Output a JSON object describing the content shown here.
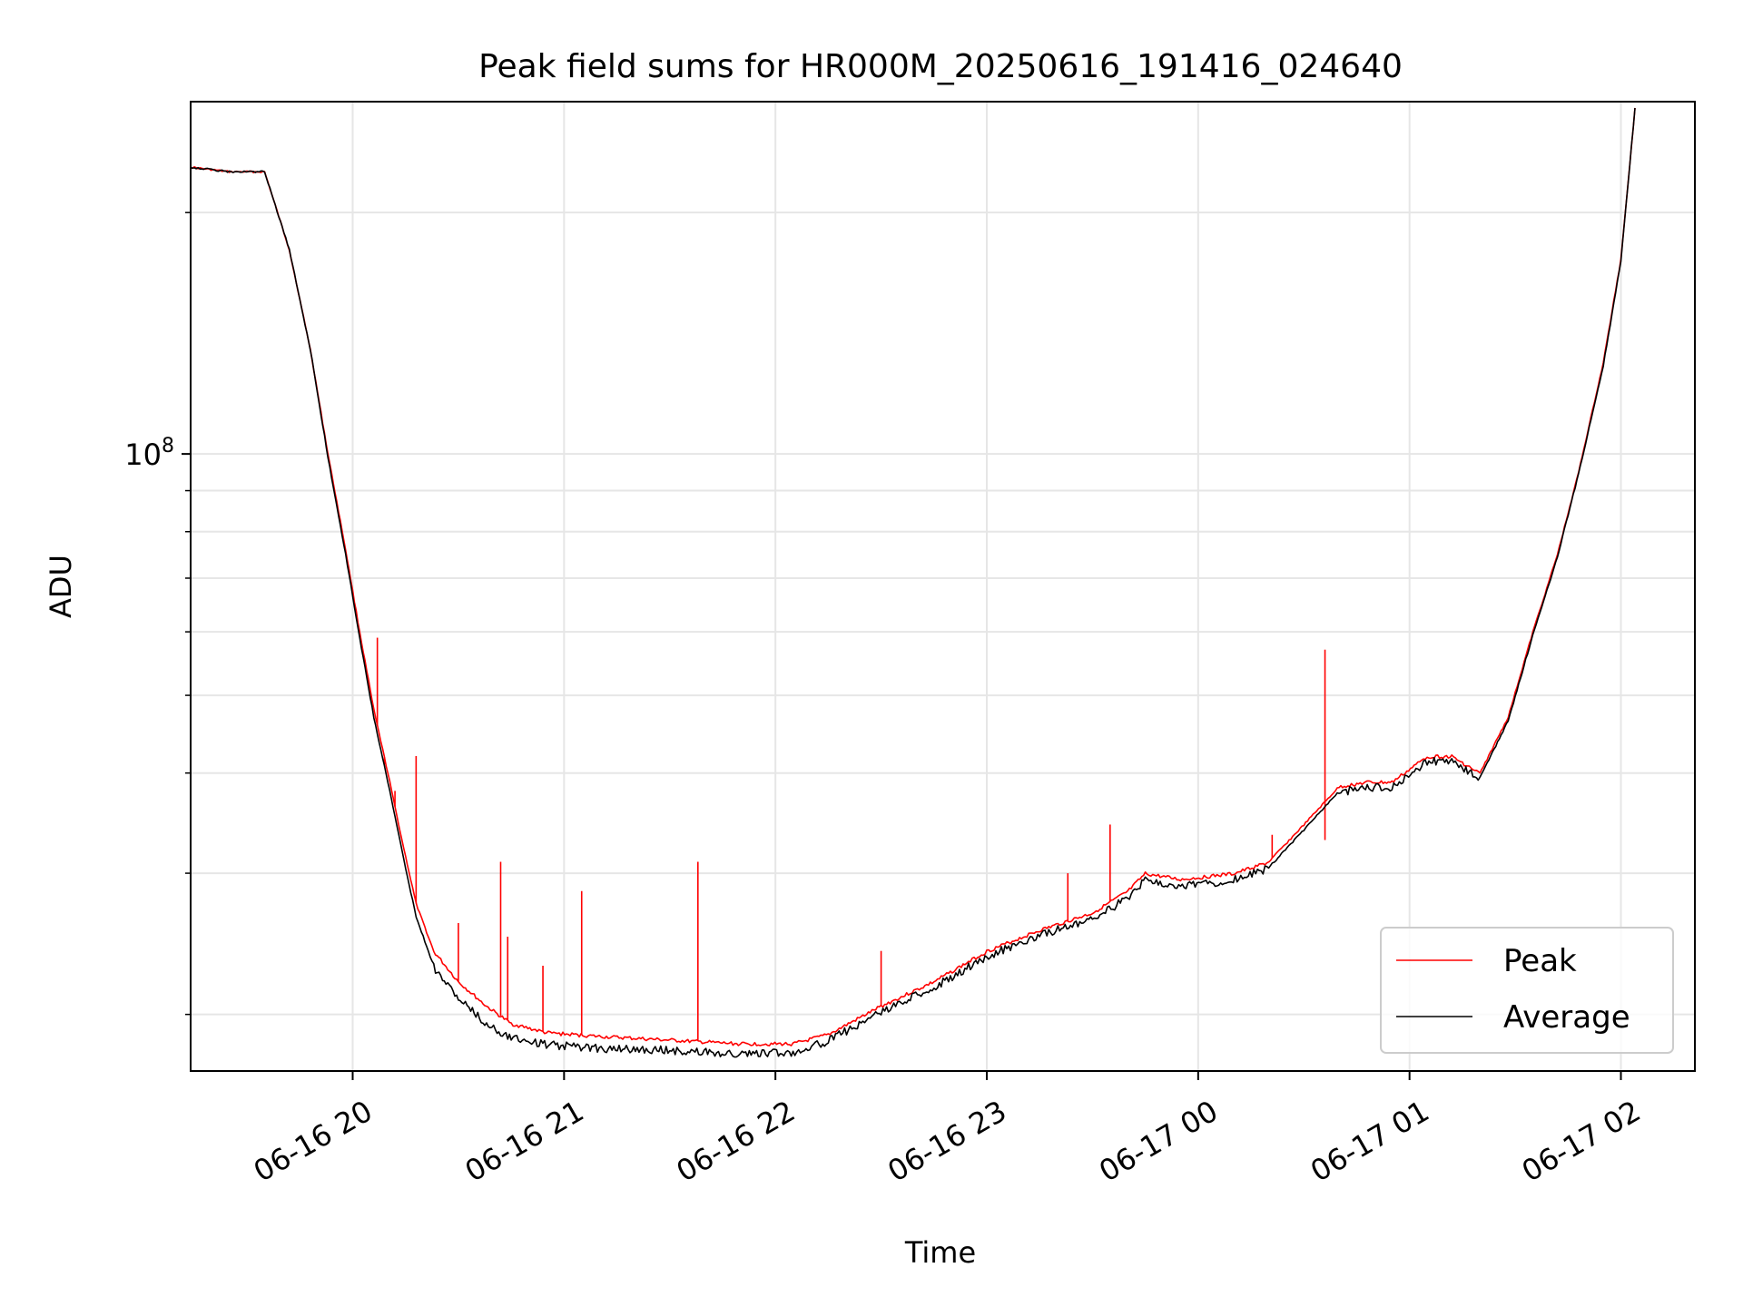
{
  "chart_data": {
    "type": "line",
    "title": "Peak field sums for HR000M_20250616_191416_024640",
    "xlabel": "Time",
    "ylabel": "ADU",
    "y_scale": "log",
    "ylim": [
      17000000,
      275000000
    ],
    "xlim": [
      "2025-06-16 19:14",
      "2025-06-17 02:21"
    ],
    "x_ticks": [
      {
        "t": "2025-06-16 20:00",
        "label": "06-16 20"
      },
      {
        "t": "2025-06-16 21:00",
        "label": "06-16 21"
      },
      {
        "t": "2025-06-16 22:00",
        "label": "06-16 22"
      },
      {
        "t": "2025-06-16 23:00",
        "label": "06-16 23"
      },
      {
        "t": "2025-06-17 00:00",
        "label": "06-17 00"
      },
      {
        "t": "2025-06-17 01:00",
        "label": "06-17 01"
      },
      {
        "t": "2025-06-17 02:00",
        "label": "06-17 02"
      }
    ],
    "y_major_ticks": [
      {
        "value": 100000000,
        "base": "10",
        "exp": "8"
      }
    ],
    "y_minor_ticks": [
      20000000,
      30000000,
      40000000,
      50000000,
      60000000,
      70000000,
      80000000,
      90000000,
      200000000
    ],
    "grid": true,
    "legend_position": "lower right",
    "series": [
      {
        "name": "Peak",
        "color": "#ff0000",
        "x": [
          "2025-06-16 19:14",
          "2025-06-16 19:25",
          "2025-06-16 19:35",
          "2025-06-16 19:42",
          "2025-06-16 19:48",
          "2025-06-16 19:53",
          "2025-06-16 19:58",
          "2025-06-16 20:02",
          "2025-06-16 20:06",
          "2025-06-16 20:10",
          "2025-06-16 20:14",
          "2025-06-16 20:18",
          "2025-06-16 20:23",
          "2025-06-16 20:30",
          "2025-06-16 20:38",
          "2025-06-16 20:45",
          "2025-06-16 20:55",
          "2025-06-16 21:10",
          "2025-06-16 21:30",
          "2025-06-16 21:50",
          "2025-06-16 22:05",
          "2025-06-16 22:15",
          "2025-06-16 22:30",
          "2025-06-16 22:45",
          "2025-06-16 23:00",
          "2025-06-16 23:15",
          "2025-06-16 23:30",
          "2025-06-16 23:40",
          "2025-06-16 23:45",
          "2025-06-16 23:55",
          "2025-06-17 00:10",
          "2025-06-17 00:20",
          "2025-06-17 00:30",
          "2025-06-17 00:40",
          "2025-06-17 00:48",
          "2025-06-17 00:55",
          "2025-06-17 01:05",
          "2025-06-17 01:12",
          "2025-06-17 01:20",
          "2025-06-17 01:28",
          "2025-06-17 01:35",
          "2025-06-17 01:42",
          "2025-06-17 01:48",
          "2025-06-17 01:55",
          "2025-06-17 02:00",
          "2025-06-17 02:04"
        ],
        "y": [
          228000000,
          225000000,
          225000000,
          180000000,
          135000000,
          100000000,
          76000000,
          60000000,
          48000000,
          40000000,
          33000000,
          27500000,
          24000000,
          22000000,
          20500000,
          19500000,
          19000000,
          18800000,
          18600000,
          18400000,
          18400000,
          18900000,
          20500000,
          22000000,
          24000000,
          25500000,
          26800000,
          28500000,
          30000000,
          29500000,
          30000000,
          31000000,
          34500000,
          38500000,
          39000000,
          39000000,
          42000000,
          42000000,
          40000000,
          47000000,
          60000000,
          75000000,
          95000000,
          130000000,
          175000000,
          270000000
        ],
        "spikes": [
          {
            "x": "2025-06-16 20:07",
            "y": 59000000
          },
          {
            "x": "2025-06-16 20:09",
            "y": 41000000
          },
          {
            "x": "2025-06-16 20:12",
            "y": 38000000
          },
          {
            "x": "2025-06-16 20:18",
            "y": 42000000
          },
          {
            "x": "2025-06-16 20:30",
            "y": 26000000
          },
          {
            "x": "2025-06-16 20:42",
            "y": 31000000
          },
          {
            "x": "2025-06-16 20:44",
            "y": 25000000
          },
          {
            "x": "2025-06-16 20:54",
            "y": 23000000
          },
          {
            "x": "2025-06-16 21:05",
            "y": 28500000
          },
          {
            "x": "2025-06-16 21:38",
            "y": 31000000
          },
          {
            "x": "2025-06-16 22:30",
            "y": 24000000
          },
          {
            "x": "2025-06-16 23:23",
            "y": 30000000
          },
          {
            "x": "2025-06-16 23:35",
            "y": 34500000
          },
          {
            "x": "2025-06-17 00:21",
            "y": 33500000
          },
          {
            "x": "2025-06-17 00:36",
            "y": 33000000
          },
          {
            "x": "2025-06-17 00:36",
            "y": 57000000
          }
        ]
      },
      {
        "name": "Average",
        "color": "#000000",
        "x": [
          "2025-06-16 19:14",
          "2025-06-16 19:25",
          "2025-06-16 19:35",
          "2025-06-16 19:42",
          "2025-06-16 19:48",
          "2025-06-16 19:53",
          "2025-06-16 19:58",
          "2025-06-16 20:02",
          "2025-06-16 20:06",
          "2025-06-16 20:10",
          "2025-06-16 20:14",
          "2025-06-16 20:18",
          "2025-06-16 20:23",
          "2025-06-16 20:30",
          "2025-06-16 20:38",
          "2025-06-16 20:45",
          "2025-06-16 20:55",
          "2025-06-16 21:10",
          "2025-06-16 21:30",
          "2025-06-16 21:50",
          "2025-06-16 22:05",
          "2025-06-16 22:15",
          "2025-06-16 22:30",
          "2025-06-16 22:45",
          "2025-06-16 23:00",
          "2025-06-16 23:15",
          "2025-06-16 23:30",
          "2025-06-16 23:40",
          "2025-06-16 23:45",
          "2025-06-16 23:55",
          "2025-06-17 00:10",
          "2025-06-17 00:20",
          "2025-06-17 00:30",
          "2025-06-17 00:40",
          "2025-06-17 00:48",
          "2025-06-17 00:55",
          "2025-06-17 01:05",
          "2025-06-17 01:12",
          "2025-06-17 01:20",
          "2025-06-17 01:28",
          "2025-06-17 01:35",
          "2025-06-17 01:42",
          "2025-06-17 01:48",
          "2025-06-17 01:55",
          "2025-06-17 02:00",
          "2025-06-17 02:04"
        ],
        "y": [
          228000000,
          225000000,
          225000000,
          180000000,
          135000000,
          99000000,
          75000000,
          59000000,
          47000000,
          39000000,
          32000000,
          26500000,
          23000000,
          21000000,
          19500000,
          18800000,
          18400000,
          18200000,
          18100000,
          17900000,
          18000000,
          18600000,
          20200000,
          21700000,
          23700000,
          25200000,
          26400000,
          28000000,
          29500000,
          29000000,
          29500000,
          30500000,
          34000000,
          38000000,
          38500000,
          38500000,
          41500000,
          41500000,
          39500000,
          46500000,
          59500000,
          74500000,
          94500000,
          129000000,
          174000000,
          270000000
        ]
      }
    ]
  }
}
